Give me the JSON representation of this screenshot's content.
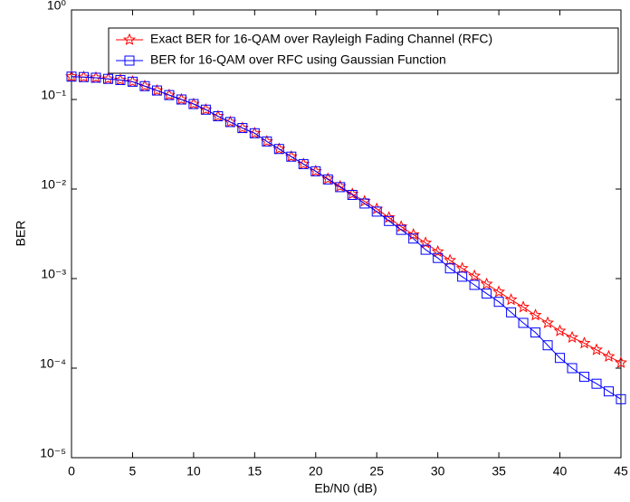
{
  "chart_data": {
    "type": "line",
    "x_label": "Eb/N0 (dB)",
    "y_label": "BER",
    "log_y": true,
    "legend": "top-right",
    "x": [
      0,
      1,
      2,
      3,
      4,
      5,
      6,
      7,
      8,
      9,
      10,
      11,
      12,
      13,
      14,
      15,
      16,
      17,
      18,
      19,
      20,
      21,
      22,
      23,
      24,
      25,
      26,
      27,
      28,
      29,
      30,
      31,
      32,
      33,
      34,
      35,
      36,
      37,
      38,
      39,
      40,
      41,
      42,
      43,
      44,
      45
    ],
    "series": [
      {
        "name": "Exact BER for 16-QAM over Rayleigh Fading Channel (RFC)",
        "color": "#ff0000",
        "marker": "star",
        "values": [
          0.18,
          0.178,
          0.175,
          0.17,
          0.165,
          0.158,
          0.141,
          0.126,
          0.112,
          0.1,
          0.089,
          0.077,
          0.065,
          0.056,
          0.048,
          0.042,
          0.034,
          0.028,
          0.023,
          0.019,
          0.0158,
          0.013,
          0.0107,
          0.0088,
          0.0073,
          0.006,
          0.0048,
          0.0038,
          0.0031,
          0.0025,
          0.002,
          0.0016,
          0.0013,
          0.00107,
          0.00087,
          0.00071,
          0.00058,
          0.00048,
          0.00039,
          0.00032,
          0.00026,
          0.00022,
          0.00019,
          0.00016,
          0.000135,
          0.000115
        ]
      },
      {
        "name": "BER for 16-QAM over RFC using Gaussian Function",
        "color": "#0000ff",
        "marker": "square",
        "values": [
          0.18,
          0.178,
          0.175,
          0.17,
          0.165,
          0.158,
          0.141,
          0.126,
          0.112,
          0.1,
          0.089,
          0.077,
          0.065,
          0.056,
          0.048,
          0.042,
          0.034,
          0.028,
          0.023,
          0.019,
          0.0158,
          0.0128,
          0.0105,
          0.0086,
          0.0069,
          0.0056,
          0.0044,
          0.0035,
          0.0028,
          0.0021,
          0.0017,
          0.0013,
          0.00105,
          0.00085,
          0.00068,
          0.00055,
          0.00042,
          0.00032,
          0.00025,
          0.00018,
          0.00013,
          0.0001,
          8e-05,
          6.7e-05,
          5.5e-05,
          4.5e-05
        ]
      }
    ],
    "xlim": [
      0,
      45
    ],
    "xticks": [
      0,
      5,
      10,
      15,
      20,
      25,
      30,
      35,
      40,
      45
    ],
    "ylim": [
      1e-05,
      1
    ],
    "yticks": [
      {
        "value": 1e-05,
        "label": "10⁻⁵"
      },
      {
        "value": 0.0001,
        "label": "10⁻⁴"
      },
      {
        "value": 0.001,
        "label": "10⁻³"
      },
      {
        "value": 0.01,
        "label": "10⁻²"
      },
      {
        "value": 0.1,
        "label": "10⁻¹"
      },
      {
        "value": 1,
        "label": "10⁰"
      }
    ],
    "grid": false
  }
}
